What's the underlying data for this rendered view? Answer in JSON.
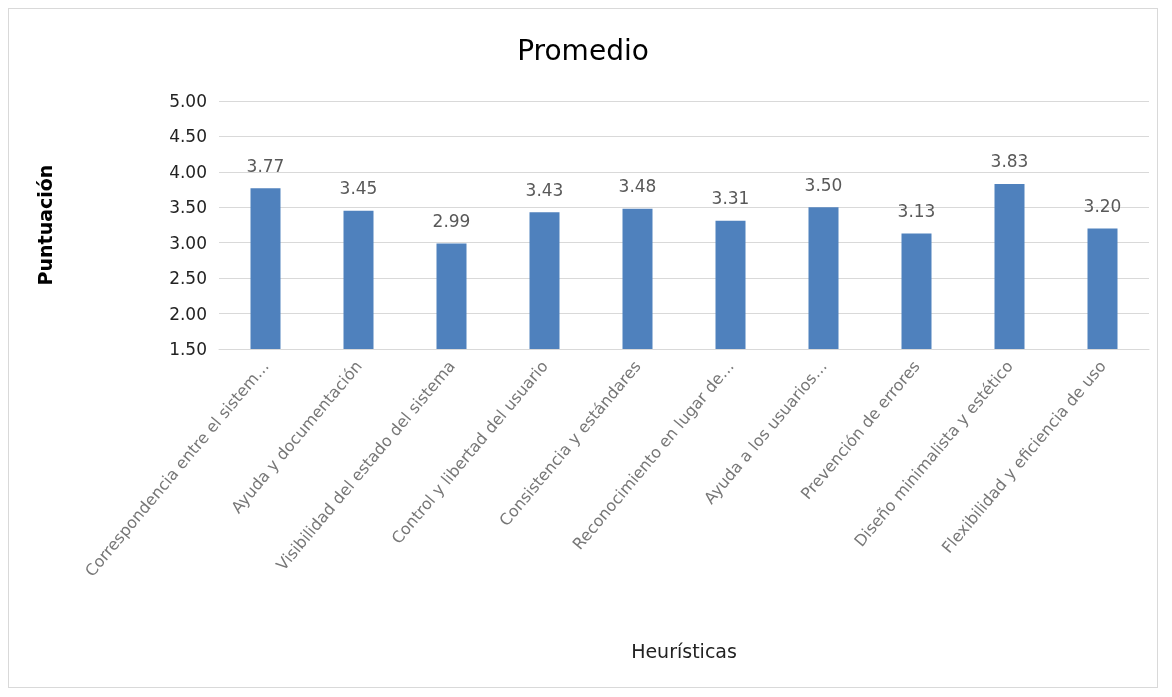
{
  "chart_data": {
    "type": "bar",
    "title": "Promedio",
    "xlabel": "Heurísticas",
    "ylabel": "Puntuación",
    "categories": [
      "Correspondencia entre el sistem…",
      "Ayuda y documentación",
      "Visibilidad del estado del sistema",
      "Control y libertad del usuario",
      "Consistencia y estándares",
      "Reconocimiento en lugar de…",
      "Ayuda a los usuarios…",
      "Prevención de errores",
      "Diseño minimalista y estético",
      "Flexibilidad y eficiencia de uso"
    ],
    "values": [
      3.77,
      3.45,
      2.99,
      3.43,
      3.48,
      3.31,
      3.5,
      3.13,
      3.83,
      3.2
    ],
    "value_labels": [
      "3.77",
      "3.45",
      "2.99",
      "3.43",
      "3.48",
      "3.31",
      "3.50",
      "3.13",
      "3.83",
      "3.20"
    ],
    "color": "#4f81bd",
    "ylim": [
      1.5,
      5
    ],
    "yticks": [
      {
        "value": 1.5,
        "label": "1.50"
      },
      {
        "value": 2,
        "label": "2.00"
      },
      {
        "value": 2.5,
        "label": "2.50"
      },
      {
        "value": 3,
        "label": "3.00"
      },
      {
        "value": 3.5,
        "label": "3.50"
      },
      {
        "value": 4,
        "label": "4.00"
      },
      {
        "value": 4.5,
        "label": "4.50"
      },
      {
        "value": 5,
        "label": "5.00"
      }
    ],
    "grid": "y"
  }
}
